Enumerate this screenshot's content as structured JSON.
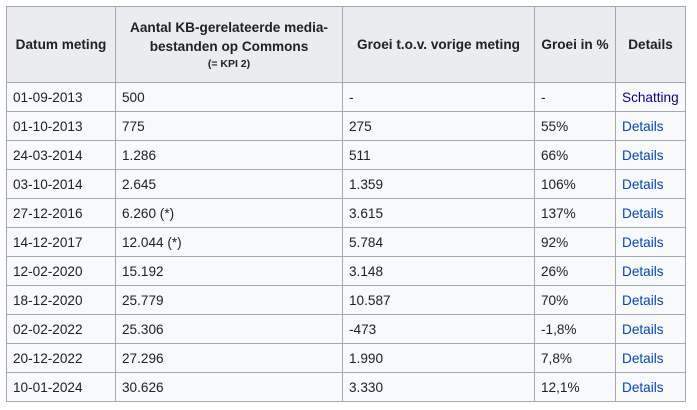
{
  "table": {
    "headers": {
      "date": "Datum meting",
      "count_line1": "Aantal KB-gerelateerde media-",
      "count_line2": "bestanden op Commons",
      "count_sub": "(= KPI 2)",
      "growth": "Groei t.o.v. vorige meting",
      "growth_pct": "Groei in %",
      "details": "Details"
    },
    "rows": [
      {
        "date": "01-09-2013",
        "count": "500",
        "growth": "-",
        "growth_pct": "-",
        "link": "Schatting"
      },
      {
        "date": "01-10-2013",
        "count": "775",
        "growth": "275",
        "growth_pct": "55%",
        "link": "Details"
      },
      {
        "date": "24-03-2014",
        "count": "1.286",
        "growth": "511",
        "growth_pct": "66%",
        "link": "Details"
      },
      {
        "date": "03-10-2014",
        "count": "2.645",
        "growth": "1.359",
        "growth_pct": "106%",
        "link": "Details"
      },
      {
        "date": "27-12-2016",
        "count": "6.260 (*)",
        "growth": "3.615",
        "growth_pct": "137%",
        "link": "Details"
      },
      {
        "date": "14-12-2017",
        "count": "12.044 (*)",
        "growth": "5.784",
        "growth_pct": "92%",
        "link": "Details"
      },
      {
        "date": "12-02-2020",
        "count": "15.192",
        "growth": "3.148",
        "growth_pct": "26%",
        "link": "Details"
      },
      {
        "date": "18-12-2020",
        "count": "25.779",
        "growth": "10.587",
        "growth_pct": "70%",
        "link": "Details"
      },
      {
        "date": "02-02-2022",
        "count": "25.306",
        "growth": "-473",
        "growth_pct": "-1,8%",
        "link": "Details"
      },
      {
        "date": "20-12-2022",
        "count": "27.296",
        "growth": "1.990",
        "growth_pct": "7,8%",
        "link": "Details"
      },
      {
        "date": "10-01-2024",
        "count": "30.626",
        "growth": "3.330",
        "growth_pct": "12,1%",
        "link": "Details"
      }
    ]
  },
  "colors": {
    "header_bg": "#eaecf0",
    "cell_bg": "#f8f9fa",
    "border": "#a2a9b1",
    "link": "#0645ad",
    "visited_link": "#0b0080"
  }
}
